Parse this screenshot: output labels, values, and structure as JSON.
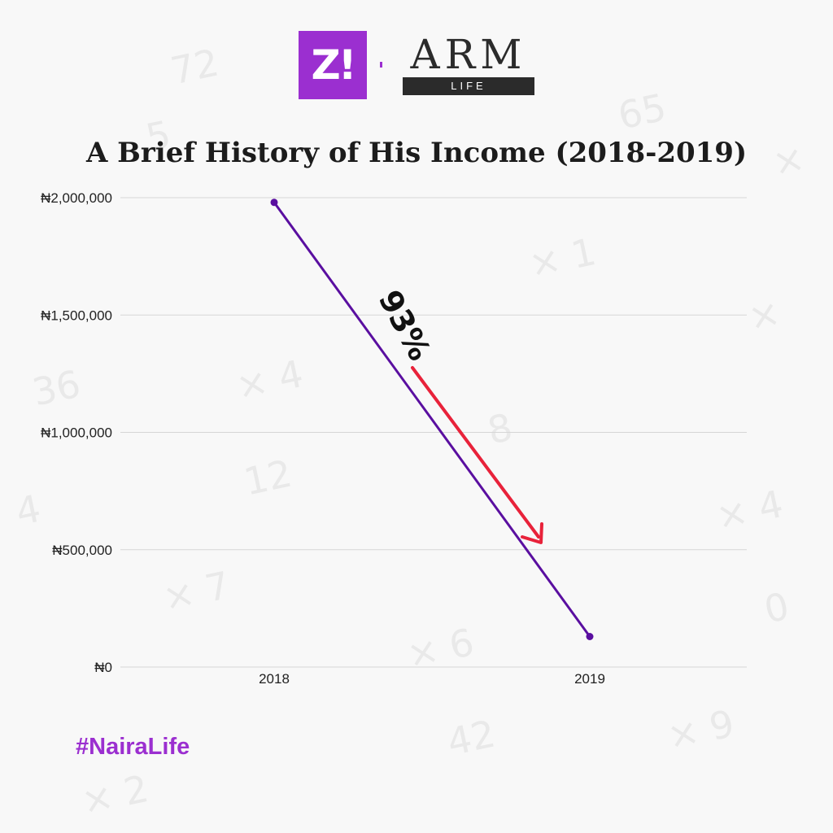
{
  "logos": {
    "zikoko": "Z!",
    "arm_main": "ARM",
    "arm_sub": "LIFE"
  },
  "hashtag": "#NairaLife",
  "colors": {
    "line": "#5a0fa0",
    "arrow": "#e8223a",
    "brand_purple": "#9b2fd0",
    "grid": "#d6d6d6"
  },
  "chart_data": {
    "type": "line",
    "title": "A Brief History of His Income (2018-2019)",
    "categories": [
      "2018",
      "2019"
    ],
    "series": [
      {
        "values": [
          1980000,
          130000
        ]
      }
    ],
    "ylim": [
      0,
      2000000
    ],
    "yticks": [
      0,
      500000,
      1000000,
      1500000,
      2000000
    ],
    "ytick_labels": [
      "₦0",
      "₦500,000",
      "₦1,000,000",
      "₦1,500,000",
      "₦2,000,000"
    ],
    "grid": true,
    "annotations": [
      {
        "text": "93%",
        "kind": "decrease-arrow"
      }
    ]
  }
}
